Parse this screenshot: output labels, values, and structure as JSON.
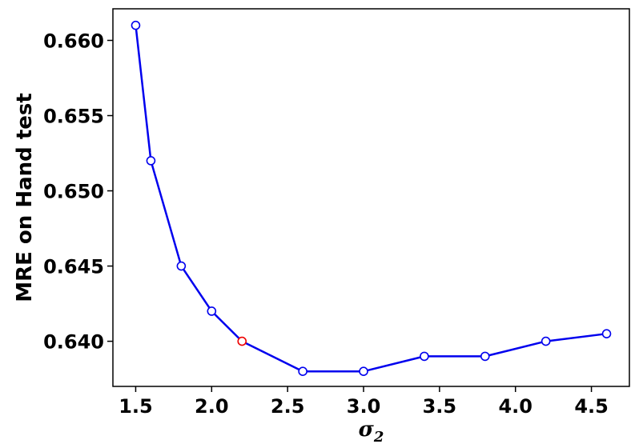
{
  "chart_data": {
    "type": "line",
    "xlabel_symbol": "σ",
    "xlabel_subscript": "2",
    "ylabel": "MRE on Hand test",
    "xlim": [
      1.35,
      4.75
    ],
    "ylim": [
      0.637,
      0.6621
    ],
    "xticks": [
      1.5,
      2.0,
      2.5,
      3.0,
      3.5,
      4.0,
      4.5
    ],
    "xtick_labels": [
      "1.5",
      "2.0",
      "2.5",
      "3.0",
      "3.5",
      "4.0",
      "4.5"
    ],
    "yticks": [
      0.64,
      0.645,
      0.65,
      0.655,
      0.66
    ],
    "ytick_labels": [
      "0.640",
      "0.645",
      "0.650",
      "0.655",
      "0.660"
    ],
    "grid": false,
    "series": [
      {
        "color": "#0000ee",
        "marker": "hollow-circle",
        "highlight_color": "#ee0000",
        "highlight_index": 4,
        "x": [
          1.5,
          1.6,
          1.8,
          2.0,
          2.2,
          2.6,
          3.0,
          3.4,
          3.8,
          4.2,
          4.6
        ],
        "y": [
          0.661,
          0.652,
          0.645,
          0.642,
          0.64,
          0.638,
          0.638,
          0.639,
          0.639,
          0.64,
          0.6405
        ]
      }
    ]
  }
}
